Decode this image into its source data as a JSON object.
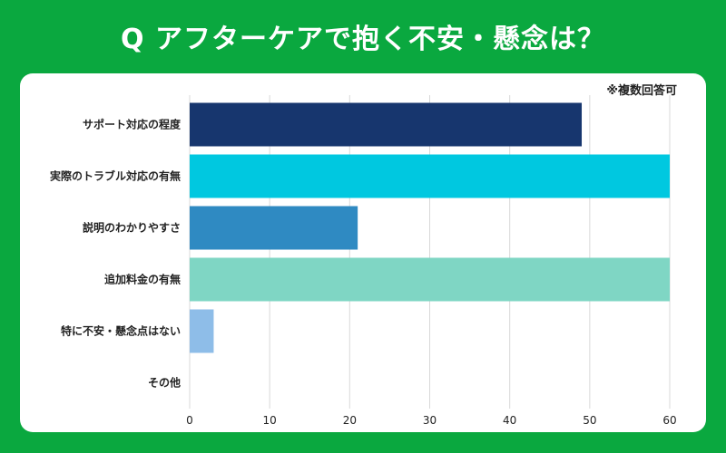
{
  "header": {
    "title": "Q アフターケアで抱く不安・懸念は？"
  },
  "note": "※複数回答可",
  "chart_data": {
    "type": "bar",
    "orientation": "horizontal",
    "title": "Q アフターケアで抱く不安・懸念は？",
    "categories": [
      "サポート対応の程度",
      "実際のトラブル対応の有無",
      "説明のわかりやすさ",
      "追加料金の有無",
      "特に不安・懸念点はない",
      "その他"
    ],
    "values": [
      49,
      60,
      21,
      60,
      3,
      0
    ],
    "colors": [
      "#17366e",
      "#00c8e0",
      "#2f8ac2",
      "#7fd6c4",
      "#8ebde8",
      "#cccccc"
    ],
    "xlim": [
      0,
      60
    ],
    "xticks": [
      0,
      10,
      20,
      30,
      40,
      50,
      60
    ],
    "xlabel": "",
    "ylabel": "",
    "grid": true
  }
}
